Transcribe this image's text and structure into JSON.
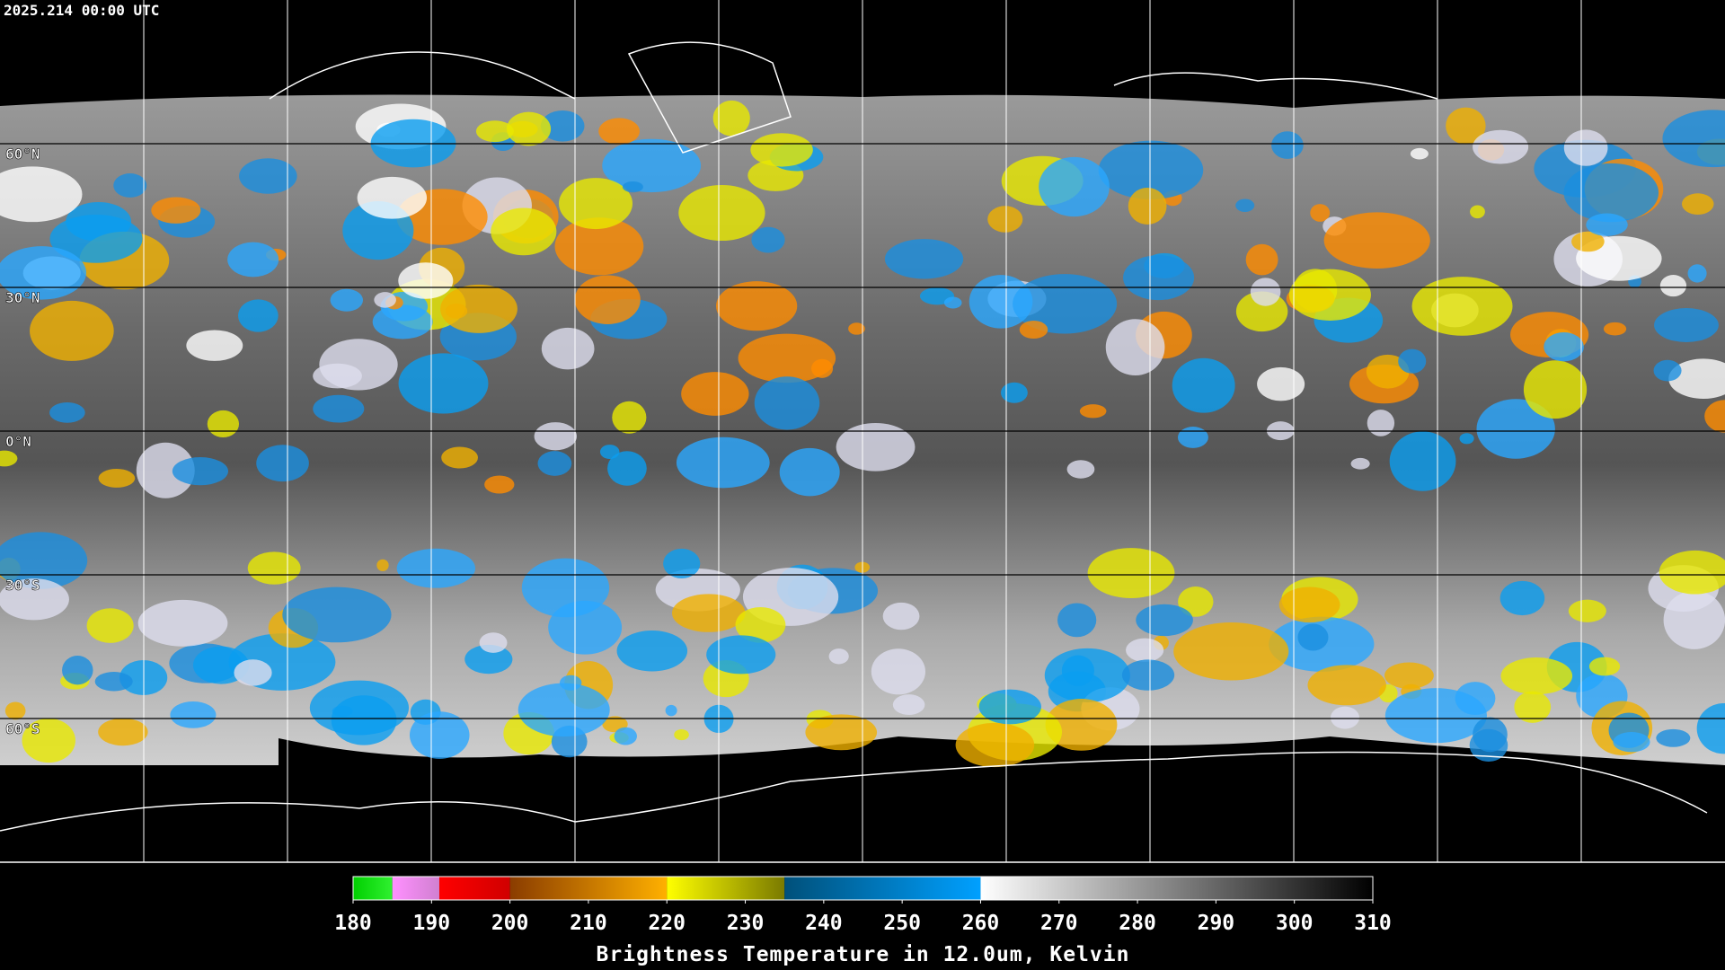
{
  "header": {
    "timestamp": "2025.214 00:00 UTC"
  },
  "map": {
    "lat_lines": [
      {
        "value": 60,
        "label": "60°N"
      },
      {
        "value": 30,
        "label": "30°N"
      },
      {
        "value": 0,
        "label": "0°N"
      },
      {
        "value": -30,
        "label": "30°S"
      },
      {
        "value": -60,
        "label": "60°S"
      }
    ]
  },
  "colorbar": {
    "range": [
      180,
      310
    ],
    "ticks": [
      180,
      190,
      200,
      210,
      220,
      230,
      240,
      250,
      260,
      270,
      280,
      290,
      300,
      310
    ],
    "segments": [
      {
        "from": 180,
        "to": 185,
        "colors": [
          "#00d000",
          "#30f030"
        ]
      },
      {
        "from": 185,
        "to": 191,
        "colors": [
          "#ff90ff",
          "#d080d0"
        ]
      },
      {
        "from": 191,
        "to": 200,
        "colors": [
          "#ff0000",
          "#d00000"
        ]
      },
      {
        "from": 200,
        "to": 220,
        "colors": [
          "#8a3c00",
          "#ffb000"
        ]
      },
      {
        "from": 220,
        "to": 235,
        "colors": [
          "#ffff00",
          "#7a7a00"
        ]
      },
      {
        "from": 235,
        "to": 260,
        "colors": [
          "#00507a",
          "#00a0ff"
        ]
      },
      {
        "from": 260,
        "to": 310,
        "colors": [
          "#ffffff",
          "#000000"
        ]
      }
    ],
    "title": "Brightness Temperature in 12.0um, Kelvin"
  }
}
